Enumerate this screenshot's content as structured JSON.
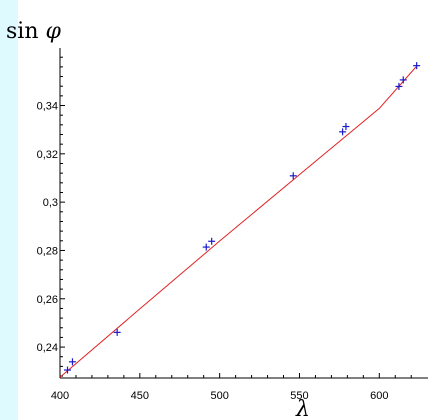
{
  "chart_data": {
    "type": "scatter",
    "title": "",
    "xlabel": "λ",
    "ylabel_prefix": "sin",
    "ylabel_symbol": "φ",
    "xlim": [
      400,
      628
    ],
    "ylim": [
      0.2272,
      0.3605
    ],
    "x_ticks": [
      {
        "value": 400,
        "label": "400"
      },
      {
        "value": 450,
        "label": "450"
      },
      {
        "value": 500,
        "label": "500"
      },
      {
        "value": 550,
        "label": "550"
      },
      {
        "value": 600,
        "label": "600"
      }
    ],
    "y_ticks": [
      {
        "value": 0.24,
        "label": "0,24"
      },
      {
        "value": 0.26,
        "label": "0,26"
      },
      {
        "value": 0.28,
        "label": "0,28"
      },
      {
        "value": 0.3,
        "label": "0,3"
      },
      {
        "value": 0.32,
        "label": "0,32"
      },
      {
        "value": 0.34,
        "label": "0,34"
      }
    ],
    "grid": false,
    "series": [
      {
        "kind": "points",
        "marker": "+",
        "color": "#1a1acc",
        "x": [
          404.7,
          407.8,
          435.8,
          491.6,
          495.0,
          546.1,
          577.0,
          579.1,
          612.3,
          615.0,
          623.4
        ],
        "y": [
          0.2305,
          0.2339,
          0.2461,
          0.2814,
          0.2838,
          0.3109,
          0.3291,
          0.3313,
          0.3479,
          0.3506,
          0.3565
        ]
      },
      {
        "kind": "fit-line",
        "color": "#e32222",
        "x": [
          400,
          450,
          500,
          550,
          600,
          623
        ],
        "y": [
          0.2275,
          0.2558,
          0.2839,
          0.3114,
          0.3388,
          0.356
        ]
      }
    ]
  }
}
